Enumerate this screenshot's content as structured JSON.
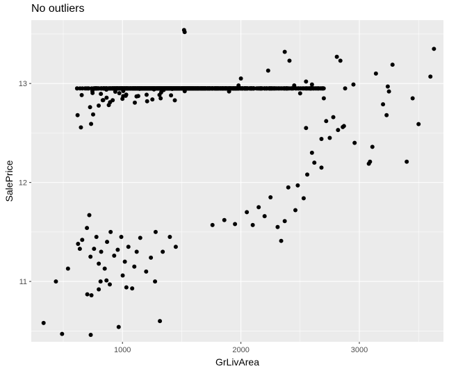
{
  "chart_data": {
    "type": "scatter",
    "title": "No outliers",
    "xlabel": "GrLivArea",
    "ylabel": "SalePrice",
    "xlim": [
      230,
      3710
    ],
    "ylim": [
      10.39,
      13.64
    ],
    "x_ticks": [
      1000,
      2000,
      3000
    ],
    "x_tick_labels": [
      "1000",
      "2000",
      "3000"
    ],
    "y_ticks": [
      11,
      12,
      13
    ],
    "y_tick_labels": [
      "11",
      "12",
      "13"
    ],
    "grid": true,
    "legend": "none",
    "colors": {
      "panel": "#ebebeb",
      "grid_major": "#ffffff",
      "point": "#000000"
    },
    "points": [
      [
        334,
        10.58
      ],
      [
        490,
        10.47
      ],
      [
        732,
        10.46
      ],
      [
        968,
        10.54
      ],
      [
        1316,
        10.6
      ],
      [
        438,
        11.0
      ],
      [
        703,
        10.87
      ],
      [
        738,
        10.86
      ],
      [
        800,
        10.92
      ],
      [
        815,
        11.0
      ],
      [
        865,
        11.01
      ],
      [
        893,
        10.97
      ],
      [
        1002,
        11.06
      ],
      [
        1033,
        10.94
      ],
      [
        1082,
        10.93
      ],
      [
        1275,
        11.0
      ],
      [
        540,
        11.13
      ],
      [
        625,
        11.38
      ],
      [
        640,
        11.33
      ],
      [
        660,
        11.42
      ],
      [
        700,
        11.54
      ],
      [
        720,
        11.67
      ],
      [
        730,
        11.25
      ],
      [
        760,
        11.33
      ],
      [
        780,
        11.45
      ],
      [
        800,
        11.18
      ],
      [
        820,
        11.3
      ],
      [
        850,
        11.13
      ],
      [
        870,
        11.4
      ],
      [
        900,
        11.5
      ],
      [
        930,
        11.26
      ],
      [
        960,
        11.32
      ],
      [
        990,
        11.45
      ],
      [
        1020,
        11.2
      ],
      [
        1050,
        11.35
      ],
      [
        1100,
        11.15
      ],
      [
        1120,
        11.3
      ],
      [
        1150,
        11.44
      ],
      [
        1200,
        11.1
      ],
      [
        1240,
        11.24
      ],
      [
        1280,
        11.5
      ],
      [
        1340,
        11.3
      ],
      [
        1400,
        11.45
      ],
      [
        1450,
        11.35
      ],
      [
        2340,
        11.41
      ],
      [
        2100,
        11.57
      ],
      [
        2200,
        11.66
      ],
      [
        2310,
        11.55
      ],
      [
        2370,
        11.61
      ],
      [
        2460,
        11.72
      ],
      [
        2530,
        11.84
      ],
      [
        2400,
        11.95
      ],
      [
        1760,
        11.57
      ],
      [
        1860,
        11.62
      ],
      [
        1950,
        11.58
      ],
      [
        2050,
        11.7
      ],
      [
        2150,
        11.75
      ],
      [
        2250,
        11.85
      ],
      [
        2480,
        11.97
      ],
      [
        2560,
        12.08
      ],
      [
        2620,
        12.2
      ],
      [
        2680,
        12.15
      ],
      [
        1520,
        13.54
      ],
      [
        1525,
        13.52
      ],
      [
        1410,
        12.88
      ],
      [
        2370,
        13.32
      ],
      [
        2410,
        13.23
      ],
      [
        2230,
        13.13
      ],
      [
        2810,
        13.27
      ],
      [
        2840,
        13.23
      ],
      [
        3630,
        13.35
      ],
      [
        3280,
        13.19
      ],
      [
        3140,
        13.1
      ],
      [
        3600,
        13.07
      ],
      [
        3240,
        12.97
      ],
      [
        3250,
        12.92
      ],
      [
        3200,
        12.79
      ],
      [
        3450,
        12.85
      ],
      [
        3230,
        12.68
      ],
      [
        2950,
        12.99
      ],
      [
        2880,
        12.95
      ],
      [
        3500,
        12.59
      ],
      [
        2960,
        12.4
      ],
      [
        3110,
        12.36
      ],
      [
        3090,
        12.21
      ],
      [
        3080,
        12.19
      ],
      [
        3400,
        12.21
      ],
      [
        2860,
        12.56
      ],
      [
        2870,
        12.57
      ],
      [
        2820,
        12.53
      ],
      [
        2750,
        12.45
      ],
      [
        2700,
        12.85
      ],
      [
        2650,
        12.95
      ],
      [
        2600,
        12.99
      ],
      [
        2550,
        13.02
      ],
      [
        2500,
        12.9
      ],
      [
        2450,
        12.98
      ],
      [
        2000,
        13.05
      ],
      [
        1980,
        12.98
      ],
      [
        1900,
        12.92
      ],
      [
        2600,
        12.3
      ],
      [
        2680,
        12.44
      ],
      [
        2720,
        12.62
      ],
      [
        2780,
        12.66
      ],
      [
        2550,
        12.55
      ]
    ]
  }
}
